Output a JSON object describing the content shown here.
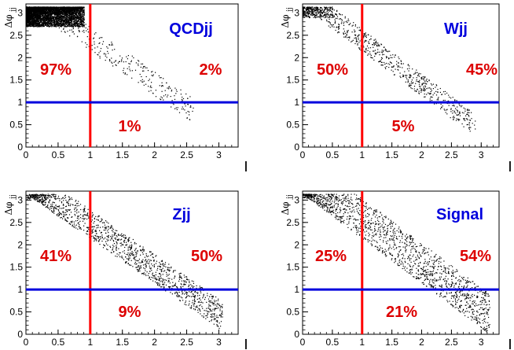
{
  "colors": {
    "cut_line_vertical": "#ff0000",
    "cut_line_horizontal": "#0000dd",
    "percent_text": "#dd0000",
    "sample_name": "#0000dd",
    "points": "#000000"
  },
  "chart_data": [
    {
      "type": "scatter",
      "title": "QCDjj",
      "ylabel": "Δφ",
      "ylabel_sub": "jj",
      "xlabel": "|",
      "xlim": [
        0,
        3.3
      ],
      "ylim": [
        0,
        3.2
      ],
      "xticks": [
        "0",
        "0.5",
        "1",
        "1.5",
        "2",
        "2.5",
        "3"
      ],
      "yticks": [
        "0",
        "0.5",
        "1",
        "1.5",
        "2",
        "2.5",
        "3"
      ],
      "cut_x": 1.0,
      "cut_y": 1.0,
      "region_percents": {
        "upper_left": "97%",
        "upper_right": "2%",
        "lower_right": "1%"
      },
      "distribution": {
        "dense_cluster": {
          "x": [
            0,
            0.9
          ],
          "y": [
            2.7,
            3.14
          ],
          "count": 4500
        },
        "band_start": 0.05,
        "band_end": 2.6,
        "band_width": 0.55,
        "band_count": 340
      }
    },
    {
      "type": "scatter",
      "title": "Wjj",
      "ylabel": "Δφ",
      "ylabel_sub": "jj",
      "xlabel": "|",
      "xlim": [
        0,
        3.3
      ],
      "ylim": [
        0,
        3.2
      ],
      "xticks": [
        "0",
        "0.5",
        "1",
        "1.5",
        "2",
        "2.5",
        "3"
      ],
      "yticks": [
        "0",
        "0.5",
        "1",
        "1.5",
        "2",
        "2.5",
        "3"
      ],
      "cut_x": 1.0,
      "cut_y": 1.0,
      "region_percents": {
        "upper_left": "50%",
        "upper_right": "45%",
        "lower_right": "5%"
      },
      "distribution": {
        "dense_cluster": {
          "x": [
            0,
            0.5
          ],
          "y": [
            2.9,
            3.14
          ],
          "count": 250
        },
        "band_start": 0.05,
        "band_end": 2.9,
        "band_width": 0.5,
        "band_count": 700
      }
    },
    {
      "type": "scatter",
      "title": "Zjj",
      "ylabel": "Δφ",
      "ylabel_sub": "jj",
      "xlabel": "|",
      "xlim": [
        0,
        3.3
      ],
      "ylim": [
        0,
        3.2
      ],
      "xticks": [
        "0",
        "0.5",
        "1",
        "1.5",
        "2",
        "2.5",
        "3"
      ],
      "yticks": [
        "0",
        "0.5",
        "1",
        "1.5",
        "2",
        "2.5",
        "3"
      ],
      "cut_x": 1.0,
      "cut_y": 1.0,
      "region_percents": {
        "upper_left": "41%",
        "upper_right": "50%",
        "lower_right": "9%"
      },
      "distribution": {
        "dense_cluster": {
          "x": [
            0,
            0.3
          ],
          "y": [
            3.0,
            3.14
          ],
          "count": 60
        },
        "band_start": 0.05,
        "band_end": 3.05,
        "band_width": 0.65,
        "band_count": 1300
      }
    },
    {
      "type": "scatter",
      "title": "Signal",
      "ylabel": "Δφ",
      "ylabel_sub": "jj",
      "xlabel": "|",
      "xlim": [
        0,
        3.3
      ],
      "ylim": [
        0,
        3.2
      ],
      "xticks": [
        "0",
        "0.5",
        "1",
        "1.5",
        "2",
        "2.5",
        "3"
      ],
      "yticks": [
        "0",
        "0.5",
        "1",
        "1.5",
        "2",
        "2.5",
        "3"
      ],
      "cut_x": 1.0,
      "cut_y": 1.0,
      "region_percents": {
        "upper_left": "25%",
        "upper_right": "54%",
        "lower_right": "21%"
      },
      "distribution": {
        "dense_cluster": {
          "x": [
            0,
            0.15
          ],
          "y": [
            3.05,
            3.14
          ],
          "count": 40
        },
        "band_start": 0.0,
        "band_end": 3.14,
        "band_width": 0.9,
        "band_count": 1500
      }
    }
  ]
}
